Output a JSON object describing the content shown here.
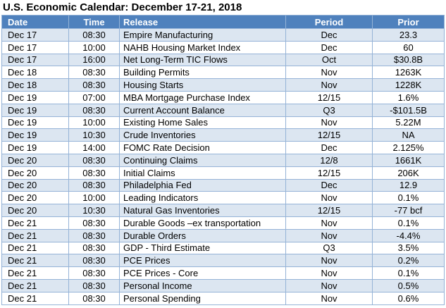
{
  "title": "U.S. Economic Calendar: December 17-21, 2018",
  "colors": {
    "header_bg": "#4F81BD",
    "header_text": "#FFFFFF",
    "band_row_bg": "#DCE6F1",
    "plain_row_bg": "#FFFFFF",
    "border": "#95B3D7",
    "body_text": "#000000"
  },
  "chart_data": {
    "type": "table",
    "title": "U.S. Economic Calendar: December 17-21, 2018",
    "columns": [
      "Date",
      "Time",
      "Release",
      "Period",
      "Prior"
    ],
    "rows": [
      [
        "Dec 17",
        "08:30",
        "Empire Manufacturing",
        "Dec",
        "23.3"
      ],
      [
        "Dec 17",
        "10:00",
        "NAHB Housing Market Index",
        "Dec",
        "60"
      ],
      [
        "Dec 17",
        "16:00",
        "Net Long-Term TIC Flows",
        "Oct",
        "$30.8B"
      ],
      [
        "Dec 18",
        "08:30",
        "Building Permits",
        "Nov",
        "1263K"
      ],
      [
        "Dec 18",
        "08:30",
        "Housing Starts",
        "Nov",
        "1228K"
      ],
      [
        "Dec 19",
        "07:00",
        "MBA Mortgage Purchase Index",
        "12/15",
        "1.6%"
      ],
      [
        "Dec 19",
        "08:30",
        "Current Account Balance",
        "Q3",
        "-$101.5B"
      ],
      [
        "Dec 19",
        "10:00",
        "Existing Home Sales",
        "Nov",
        "5.22M"
      ],
      [
        "Dec 19",
        "10:30",
        "Crude Inventories",
        "12/15",
        "NA"
      ],
      [
        "Dec 19",
        "14:00",
        "FOMC Rate Decision",
        "Dec",
        "2.125%"
      ],
      [
        "Dec 20",
        "08:30",
        "Continuing Claims",
        "12/8",
        "1661K"
      ],
      [
        "Dec 20",
        "08:30",
        "Initial Claims",
        "12/15",
        "206K"
      ],
      [
        "Dec 20",
        "08:30",
        "Philadelphia Fed",
        "Dec",
        "12.9"
      ],
      [
        "Dec 20",
        "10:00",
        "Leading Indicators",
        "Nov",
        "0.1%"
      ],
      [
        "Dec 20",
        "10:30",
        "Natural Gas Inventories",
        "12/15",
        "-77 bcf"
      ],
      [
        "Dec 21",
        "08:30",
        "Durable Goods –ex transportation",
        "Nov",
        "0.1%"
      ],
      [
        "Dec 21",
        "08:30",
        "Durable Orders",
        "Nov",
        "-4.4%"
      ],
      [
        "Dec 21",
        "08:30",
        "GDP - Third Estimate",
        "Q3",
        "3.5%"
      ],
      [
        "Dec 21",
        "08:30",
        "PCE Prices",
        "Nov",
        "0.2%"
      ],
      [
        "Dec 21",
        "08:30",
        "PCE Prices - Core",
        "Nov",
        "0.1%"
      ],
      [
        "Dec 21",
        "08:30",
        "Personal Income",
        "Nov",
        "0.5%"
      ],
      [
        "Dec 21",
        "08:30",
        "Personal Spending",
        "Nov",
        "0.6%"
      ]
    ]
  }
}
